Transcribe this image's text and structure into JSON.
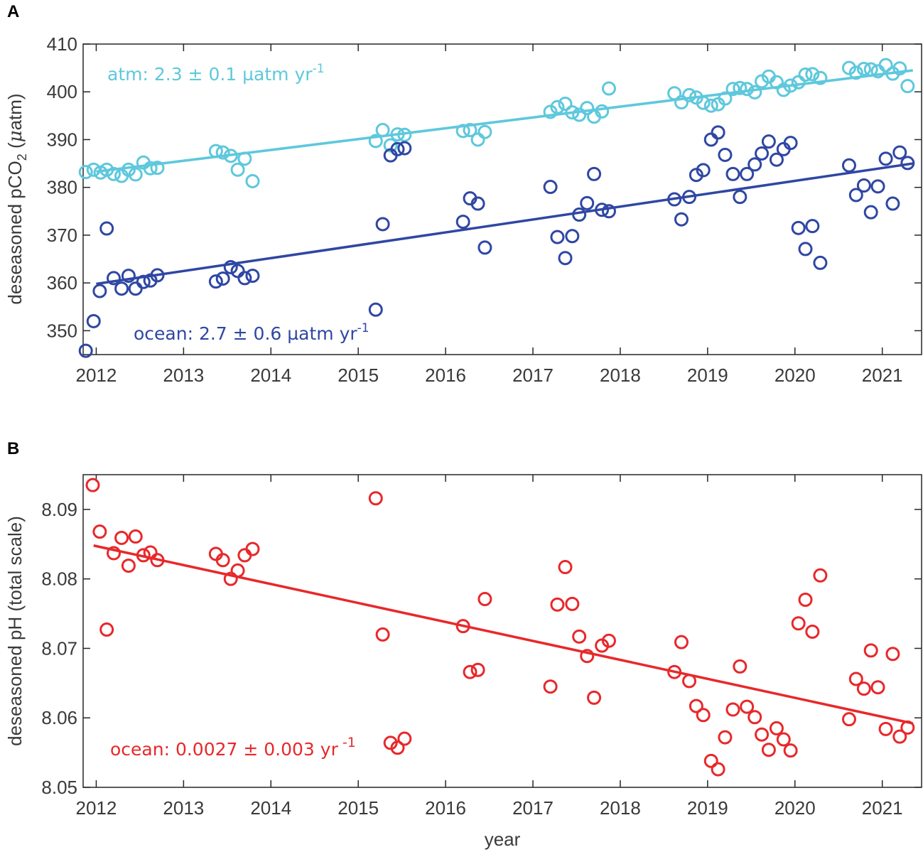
{
  "chart_data": [
    {
      "type": "scatter",
      "panel_letter": "A",
      "title": "",
      "xlabel": "",
      "ylabel": {
        "prefix": "deseasoned pCO",
        "subscript": "2",
        "mid": " (",
        "mu": "μ",
        "unit": "atm)"
      },
      "xlim": [
        2011.85,
        2021.45
      ],
      "ylim": [
        345,
        410
      ],
      "xticks": [
        2012,
        2013,
        2014,
        2015,
        2016,
        2017,
        2018,
        2019,
        2020,
        2021
      ],
      "xtick_labels": [
        "2012",
        "2013",
        "2014",
        "2015",
        "2016",
        "2017",
        "2018",
        "2019",
        "2020",
        "2021"
      ],
      "yticks": [
        350,
        360,
        370,
        380,
        390,
        400,
        410
      ],
      "ytick_labels": [
        "350",
        "360",
        "370",
        "380",
        "390",
        "400",
        "410"
      ],
      "grid": false,
      "series": [
        {
          "name": "atm",
          "color": "#5ec8dc",
          "annotation": {
            "base": "atm: 2.3 ± 0.1 µatm yr",
            "exp": "-1"
          },
          "trend": [
            [
              2012.0,
              383.3
            ],
            [
              2021.35,
              404.5
            ]
          ],
          "points": [
            [
              2011.88,
              383.2
            ],
            [
              2011.97,
              383.7
            ],
            [
              2012.05,
              383.1
            ],
            [
              2012.12,
              383.7
            ],
            [
              2012.2,
              382.8
            ],
            [
              2012.29,
              382.4
            ],
            [
              2012.37,
              383.7
            ],
            [
              2012.45,
              382.7
            ],
            [
              2012.54,
              385.2
            ],
            [
              2012.62,
              384.0
            ],
            [
              2012.7,
              384.1
            ],
            [
              2013.37,
              387.6
            ],
            [
              2013.45,
              387.3
            ],
            [
              2013.54,
              386.6
            ],
            [
              2013.62,
              383.7
            ],
            [
              2013.7,
              386.0
            ],
            [
              2013.79,
              381.3
            ],
            [
              2015.2,
              389.7
            ],
            [
              2015.28,
              392.0
            ],
            [
              2015.37,
              388.8
            ],
            [
              2015.45,
              391.1
            ],
            [
              2015.53,
              391.0
            ],
            [
              2016.2,
              391.8
            ],
            [
              2016.28,
              392.0
            ],
            [
              2016.37,
              390.0
            ],
            [
              2016.45,
              391.6
            ],
            [
              2017.2,
              395.8
            ],
            [
              2017.28,
              396.8
            ],
            [
              2017.37,
              397.5
            ],
            [
              2017.45,
              395.7
            ],
            [
              2017.53,
              395.2
            ],
            [
              2017.62,
              396.6
            ],
            [
              2017.7,
              394.8
            ],
            [
              2017.79,
              395.9
            ],
            [
              2017.87,
              400.7
            ],
            [
              2018.62,
              399.7
            ],
            [
              2018.7,
              397.8
            ],
            [
              2018.79,
              399.3
            ],
            [
              2018.87,
              398.8
            ],
            [
              2018.95,
              397.7
            ],
            [
              2019.04,
              397.1
            ],
            [
              2019.12,
              397.4
            ],
            [
              2019.2,
              398.6
            ],
            [
              2019.29,
              400.6
            ],
            [
              2019.37,
              400.8
            ],
            [
              2019.45,
              400.6
            ],
            [
              2019.54,
              399.9
            ],
            [
              2019.62,
              402.2
            ],
            [
              2019.7,
              403.2
            ],
            [
              2019.79,
              402.0
            ],
            [
              2019.87,
              400.4
            ],
            [
              2019.95,
              401.3
            ],
            [
              2020.04,
              402.0
            ],
            [
              2020.12,
              403.6
            ],
            [
              2020.2,
              403.7
            ],
            [
              2020.29,
              402.9
            ],
            [
              2020.62,
              405.0
            ],
            [
              2020.7,
              404.0
            ],
            [
              2020.79,
              404.8
            ],
            [
              2020.87,
              404.7
            ],
            [
              2020.95,
              404.3
            ],
            [
              2021.04,
              405.6
            ],
            [
              2021.12,
              403.8
            ],
            [
              2021.2,
              404.9
            ],
            [
              2021.29,
              401.2
            ]
          ]
        },
        {
          "name": "ocean",
          "color": "#2f47a3",
          "annotation": {
            "base": "ocean: 2.7 ± 0.6 µatm yr",
            "exp": "-1"
          },
          "trend": [
            [
              2012.0,
              359.8
            ],
            [
              2021.35,
              385.0
            ]
          ],
          "points": [
            [
              2011.88,
              345.8
            ],
            [
              2011.97,
              352.0
            ],
            [
              2012.04,
              358.3
            ],
            [
              2012.12,
              371.4
            ],
            [
              2012.2,
              361.0
            ],
            [
              2012.29,
              358.8
            ],
            [
              2012.37,
              361.5
            ],
            [
              2012.45,
              358.8
            ],
            [
              2012.54,
              360.2
            ],
            [
              2012.62,
              360.5
            ],
            [
              2012.7,
              361.6
            ],
            [
              2013.37,
              360.3
            ],
            [
              2013.45,
              360.9
            ],
            [
              2013.54,
              363.3
            ],
            [
              2013.62,
              362.5
            ],
            [
              2013.7,
              361.0
            ],
            [
              2013.79,
              361.5
            ],
            [
              2015.2,
              354.4
            ],
            [
              2015.28,
              372.3
            ],
            [
              2015.37,
              386.7
            ],
            [
              2015.45,
              388.0
            ],
            [
              2015.53,
              388.2
            ],
            [
              2016.2,
              372.8
            ],
            [
              2016.28,
              377.7
            ],
            [
              2016.37,
              376.6
            ],
            [
              2016.45,
              367.4
            ],
            [
              2017.2,
              380.1
            ],
            [
              2017.28,
              369.6
            ],
            [
              2017.37,
              365.2
            ],
            [
              2017.45,
              369.8
            ],
            [
              2017.53,
              374.3
            ],
            [
              2017.62,
              376.7
            ],
            [
              2017.7,
              382.8
            ],
            [
              2017.79,
              375.3
            ],
            [
              2017.87,
              375.0
            ],
            [
              2018.62,
              377.5
            ],
            [
              2018.7,
              373.3
            ],
            [
              2018.79,
              378.0
            ],
            [
              2018.87,
              382.6
            ],
            [
              2018.95,
              383.6
            ],
            [
              2019.04,
              390.0
            ],
            [
              2019.12,
              391.5
            ],
            [
              2019.2,
              386.8
            ],
            [
              2019.29,
              382.8
            ],
            [
              2019.37,
              378.0
            ],
            [
              2019.45,
              382.8
            ],
            [
              2019.54,
              384.8
            ],
            [
              2019.62,
              387.1
            ],
            [
              2019.7,
              389.6
            ],
            [
              2019.79,
              385.8
            ],
            [
              2019.87,
              388.0
            ],
            [
              2019.95,
              389.3
            ],
            [
              2020.04,
              371.5
            ],
            [
              2020.12,
              367.1
            ],
            [
              2020.2,
              371.9
            ],
            [
              2020.29,
              364.2
            ],
            [
              2020.62,
              384.6
            ],
            [
              2020.7,
              378.4
            ],
            [
              2020.79,
              380.4
            ],
            [
              2020.87,
              374.8
            ],
            [
              2020.95,
              380.2
            ],
            [
              2021.04,
              386.0
            ],
            [
              2021.12,
              376.6
            ],
            [
              2021.2,
              387.3
            ],
            [
              2021.29,
              385.1
            ]
          ]
        }
      ]
    },
    {
      "type": "scatter",
      "panel_letter": "B",
      "title": "",
      "xlabel": "year",
      "ylabel": "deseasoned pH (total scale)",
      "xlim": [
        2011.85,
        2021.45
      ],
      "ylim": [
        8.05,
        8.095
      ],
      "xticks": [
        2012,
        2013,
        2014,
        2015,
        2016,
        2017,
        2018,
        2019,
        2020,
        2021
      ],
      "xtick_labels": [
        "2012",
        "2013",
        "2014",
        "2015",
        "2016",
        "2017",
        "2018",
        "2019",
        "2020",
        "2021"
      ],
      "yticks": [
        8.05,
        8.06,
        8.07,
        8.08,
        8.09
      ],
      "ytick_labels": [
        "8.05",
        "8.06",
        "8.07",
        "8.08",
        "8.09"
      ],
      "grid": false,
      "series": [
        {
          "name": "ocean",
          "color": "#e8282b",
          "annotation": {
            "base": "ocean: 0.0027 ± 0.003 yr",
            "exp": "-1"
          },
          "trend": [
            [
              2011.97,
              8.0848
            ],
            [
              2021.35,
              8.0592
            ]
          ],
          "points": [
            [
              2011.96,
              8.0935
            ],
            [
              2012.04,
              8.0868
            ],
            [
              2012.12,
              8.0727
            ],
            [
              2012.2,
              8.0837
            ],
            [
              2012.29,
              8.0859
            ],
            [
              2012.37,
              8.0819
            ],
            [
              2012.45,
              8.0861
            ],
            [
              2012.54,
              8.0834
            ],
            [
              2012.62,
              8.0838
            ],
            [
              2012.7,
              8.0827
            ],
            [
              2013.37,
              8.0836
            ],
            [
              2013.45,
              8.0827
            ],
            [
              2013.54,
              8.08
            ],
            [
              2013.62,
              8.0812
            ],
            [
              2013.7,
              8.0834
            ],
            [
              2013.79,
              8.0843
            ],
            [
              2015.2,
              8.0916
            ],
            [
              2015.28,
              8.072
            ],
            [
              2015.37,
              8.0564
            ],
            [
              2015.45,
              8.0557
            ],
            [
              2015.53,
              8.057
            ],
            [
              2016.2,
              8.0732
            ],
            [
              2016.28,
              8.0666
            ],
            [
              2016.37,
              8.0669
            ],
            [
              2016.45,
              8.0771
            ],
            [
              2017.2,
              8.0645
            ],
            [
              2017.28,
              8.0763
            ],
            [
              2017.37,
              8.0817
            ],
            [
              2017.45,
              8.0764
            ],
            [
              2017.53,
              8.0717
            ],
            [
              2017.62,
              8.0689
            ],
            [
              2017.7,
              8.0629
            ],
            [
              2017.79,
              8.0704
            ],
            [
              2017.87,
              8.0711
            ],
            [
              2018.62,
              8.0666
            ],
            [
              2018.7,
              8.0709
            ],
            [
              2018.79,
              8.0653
            ],
            [
              2018.87,
              8.0617
            ],
            [
              2018.95,
              8.0604
            ],
            [
              2019.04,
              8.0538
            ],
            [
              2019.12,
              8.0526
            ],
            [
              2019.2,
              8.0572
            ],
            [
              2019.29,
              8.0612
            ],
            [
              2019.37,
              8.0674
            ],
            [
              2019.45,
              8.0616
            ],
            [
              2019.54,
              8.0601
            ],
            [
              2019.62,
              8.0576
            ],
            [
              2019.7,
              8.0554
            ],
            [
              2019.79,
              8.0585
            ],
            [
              2019.87,
              8.0569
            ],
            [
              2019.95,
              8.0553
            ],
            [
              2020.04,
              8.0736
            ],
            [
              2020.12,
              8.077
            ],
            [
              2020.2,
              8.0724
            ],
            [
              2020.29,
              8.0805
            ],
            [
              2020.62,
              8.0598
            ],
            [
              2020.7,
              8.0656
            ],
            [
              2020.79,
              8.0642
            ],
            [
              2020.87,
              8.0697
            ],
            [
              2020.95,
              8.0644
            ],
            [
              2021.04,
              8.0584
            ],
            [
              2021.12,
              8.0692
            ],
            [
              2021.2,
              8.0573
            ],
            [
              2021.29,
              8.0586
            ]
          ]
        }
      ]
    }
  ]
}
